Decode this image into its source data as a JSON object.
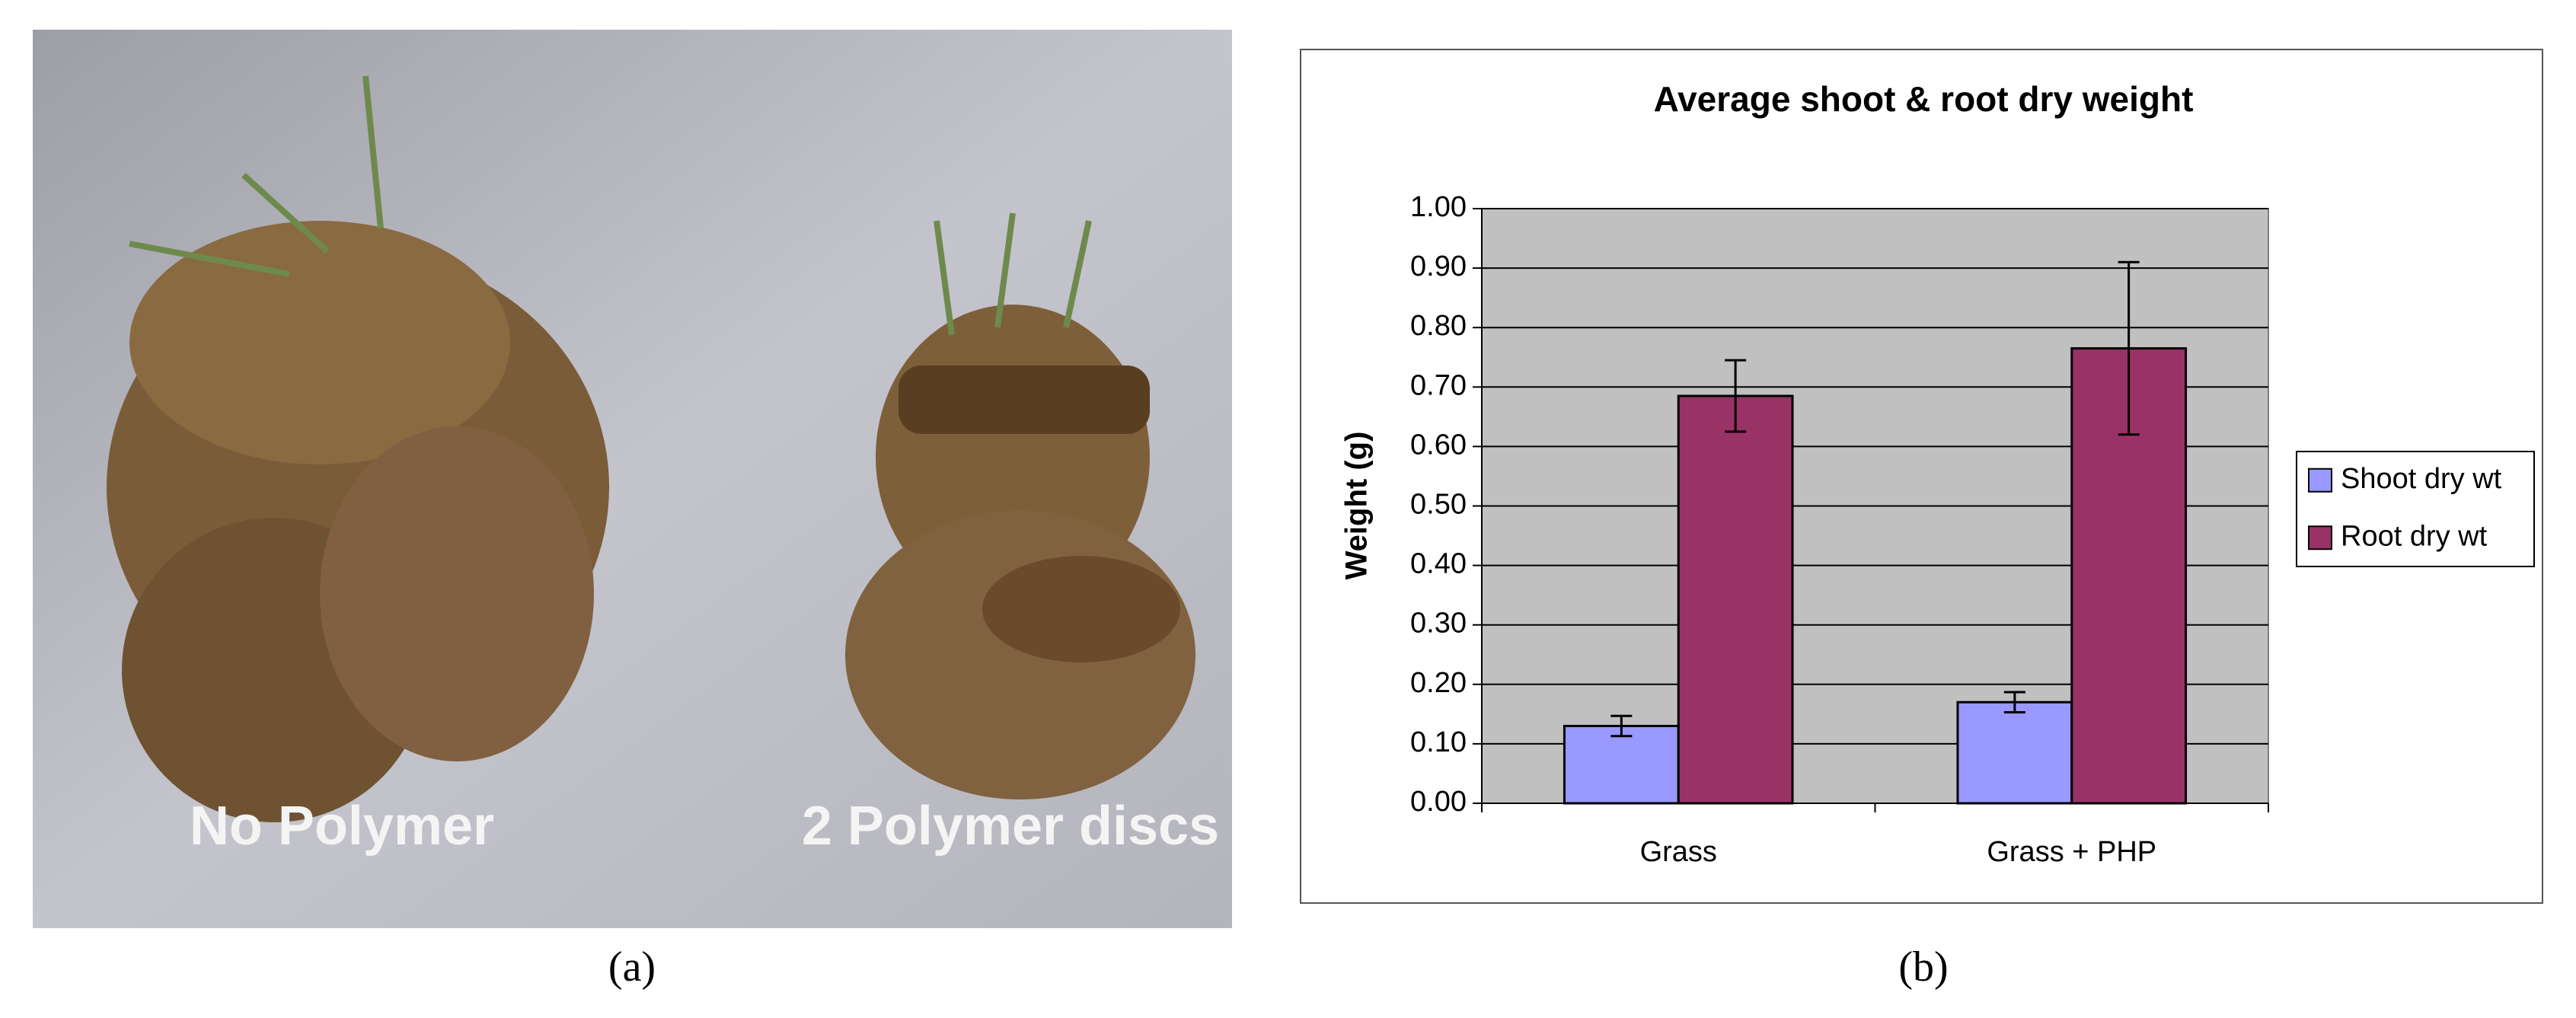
{
  "panel_a": {
    "label": "(a)",
    "annotations": [
      "No Polymer",
      "2 Polymer discs"
    ]
  },
  "panel_b": {
    "label": "(b)"
  },
  "chart_data": {
    "type": "bar",
    "title": "Average shoot & root dry weight",
    "y_label": "Weight (g)",
    "categories": [
      "Grass",
      "Grass + PHP"
    ],
    "series": [
      {
        "name": "Shoot dry wt",
        "color": "#9999ff",
        "values": [
          0.13,
          0.17
        ],
        "errors": [
          0.017,
          0.017
        ]
      },
      {
        "name": "Root dry wt",
        "color": "#993366",
        "values": [
          0.685,
          0.765
        ],
        "errors": [
          0.06,
          0.145
        ]
      }
    ],
    "ylim": [
      0,
      1
    ],
    "yticks": [
      {
        "value": 0,
        "label": "0.00"
      },
      {
        "value": 0.1,
        "label": "0.10"
      },
      {
        "value": 0.2,
        "label": "0.20"
      },
      {
        "value": 0.3,
        "label": "0.30"
      },
      {
        "value": 0.4,
        "label": "0.40"
      },
      {
        "value": 0.5,
        "label": "0.50"
      },
      {
        "value": 0.6,
        "label": "0.60"
      },
      {
        "value": 0.7,
        "label": "0.70"
      },
      {
        "value": 0.8,
        "label": "0.80"
      },
      {
        "value": 0.9,
        "label": "0.90"
      },
      {
        "value": 1,
        "label": "1.00"
      }
    ],
    "grid": true,
    "legend": "right",
    "plot_background": "#c0c0c0"
  }
}
